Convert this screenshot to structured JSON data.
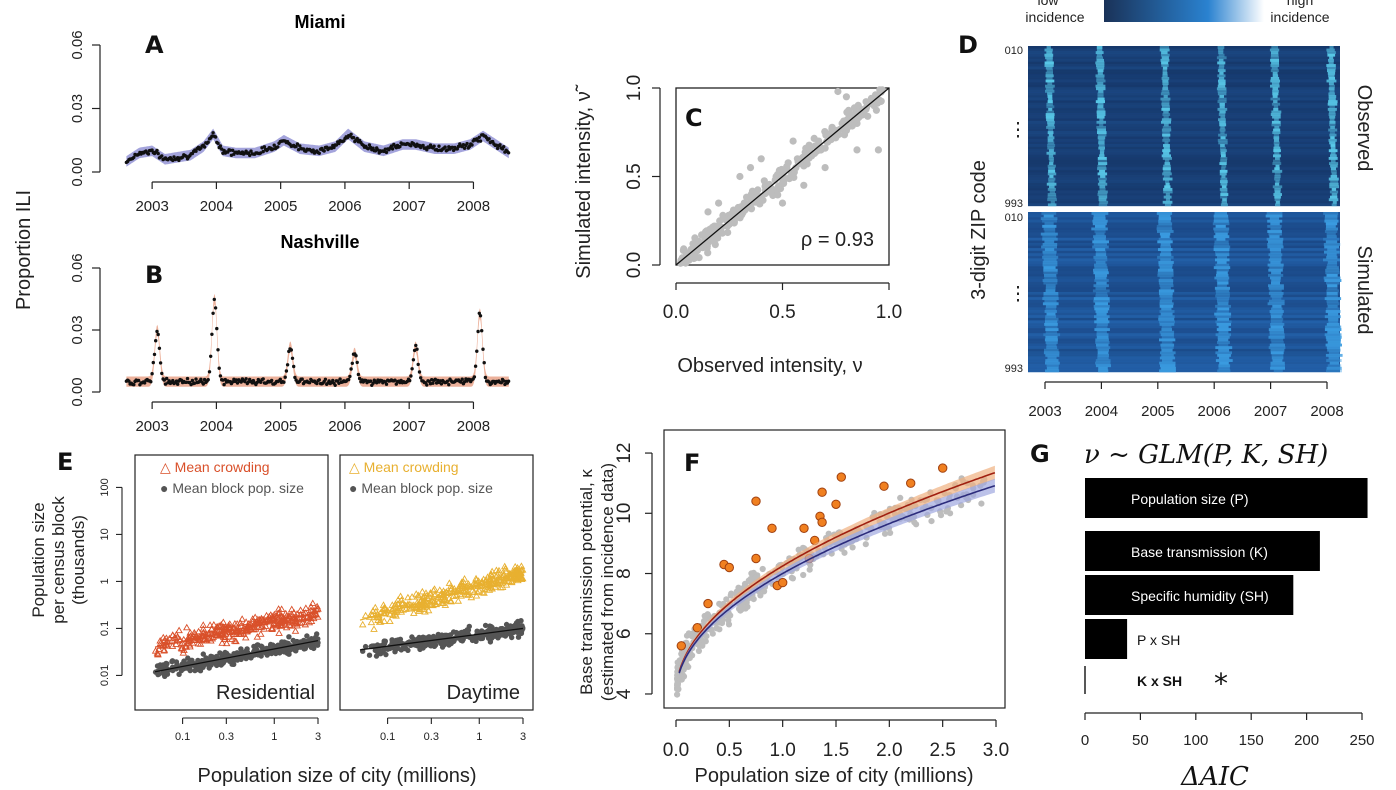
{
  "colors": {
    "miami": "#3a3a8c",
    "miami_band": "#9a9ad8",
    "nashville": "#d4502a",
    "nashville_band": "#eaa890",
    "residential": "#d9502a",
    "daytime": "#e8b030",
    "block_grey": "#555555",
    "scatter_grey": "#bdbdbd",
    "orange_point": "#f08020",
    "fit_red": "#a02010",
    "fit_blue": "#2c2c7c",
    "bar": "#000000"
  },
  "chart_data": [
    {
      "panel": "A",
      "type": "line",
      "title": "Miami",
      "ylabel": "Proportion ILI",
      "ylim": [
        0,
        0.06
      ],
      "yticks": [
        "0.00",
        "0.03",
        "0.06"
      ],
      "xticks": [
        "2003",
        "2004",
        "2005",
        "2006",
        "2007",
        "2008"
      ],
      "x_range": [
        2002.5,
        2008.6
      ],
      "series": [
        {
          "values": [
            [
              2002.6,
              0.005
            ],
            [
              2002.8,
              0.009
            ],
            [
              2003.0,
              0.01
            ],
            [
              2003.2,
              0.006
            ],
            [
              2003.4,
              0.007
            ],
            [
              2003.6,
              0.008
            ],
            [
              2003.8,
              0.012
            ],
            [
              2003.95,
              0.018
            ],
            [
              2004.1,
              0.01
            ],
            [
              2004.3,
              0.009
            ],
            [
              2004.6,
              0.009
            ],
            [
              2004.9,
              0.012
            ],
            [
              2005.05,
              0.015
            ],
            [
              2005.3,
              0.011
            ],
            [
              2005.6,
              0.01
            ],
            [
              2005.85,
              0.012
            ],
            [
              2006.05,
              0.018
            ],
            [
              2006.3,
              0.012
            ],
            [
              2006.6,
              0.01
            ],
            [
              2006.9,
              0.013
            ],
            [
              2007.1,
              0.013
            ],
            [
              2007.4,
              0.011
            ],
            [
              2007.7,
              0.011
            ],
            [
              2007.95,
              0.013
            ],
            [
              2008.15,
              0.017
            ],
            [
              2008.35,
              0.013
            ],
            [
              2008.55,
              0.009
            ]
          ]
        }
      ]
    },
    {
      "panel": "B",
      "type": "line",
      "title": "Nashville",
      "ylim": [
        0,
        0.06
      ],
      "yticks": [
        "0.00",
        "0.03",
        "0.06"
      ],
      "xticks": [
        "2003",
        "2004",
        "2005",
        "2006",
        "2007",
        "2008"
      ],
      "x_range": [
        2002.5,
        2008.6
      ],
      "peaks": [
        {
          "year": 2003.08,
          "value": 0.03
        },
        {
          "year": 2003.97,
          "value": 0.045
        },
        {
          "year": 2005.15,
          "value": 0.022
        },
        {
          "year": 2006.15,
          "value": 0.019
        },
        {
          "year": 2007.1,
          "value": 0.022
        },
        {
          "year": 2008.1,
          "value": 0.038
        }
      ],
      "baseline": 0.005
    },
    {
      "panel": "C",
      "type": "scatter",
      "xlabel": "Observed intensity, ν",
      "ylabel": "Simulated intensity, ν̃",
      "xlim": [
        0,
        1
      ],
      "ylim": [
        0,
        1
      ],
      "xticks": [
        "0.0",
        "0.5",
        "1.0"
      ],
      "yticks": [
        "0.0",
        "0.5",
        "1.0"
      ],
      "annotation": "ρ = 0.93",
      "points": [
        [
          0.05,
          0.06
        ],
        [
          0.08,
          0.12
        ],
        [
          0.1,
          0.09
        ],
        [
          0.12,
          0.17
        ],
        [
          0.15,
          0.14
        ],
        [
          0.18,
          0.22
        ],
        [
          0.2,
          0.19
        ],
        [
          0.22,
          0.28
        ],
        [
          0.25,
          0.23
        ],
        [
          0.27,
          0.31
        ],
        [
          0.3,
          0.27
        ],
        [
          0.32,
          0.35
        ],
        [
          0.35,
          0.33
        ],
        [
          0.37,
          0.41
        ],
        [
          0.4,
          0.37
        ],
        [
          0.42,
          0.45
        ],
        [
          0.45,
          0.43
        ],
        [
          0.47,
          0.5
        ],
        [
          0.5,
          0.46
        ],
        [
          0.52,
          0.55
        ],
        [
          0.55,
          0.52
        ],
        [
          0.57,
          0.6
        ],
        [
          0.6,
          0.56
        ],
        [
          0.62,
          0.65
        ],
        [
          0.65,
          0.63
        ],
        [
          0.67,
          0.7
        ],
        [
          0.7,
          0.66
        ],
        [
          0.72,
          0.74
        ],
        [
          0.75,
          0.72
        ],
        [
          0.78,
          0.8
        ],
        [
          0.8,
          0.76
        ],
        [
          0.82,
          0.85
        ],
        [
          0.85,
          0.8
        ],
        [
          0.88,
          0.86
        ],
        [
          0.9,
          0.84
        ],
        [
          0.93,
          0.9
        ],
        [
          0.76,
          0.98
        ],
        [
          0.8,
          0.95
        ],
        [
          0.3,
          0.5
        ],
        [
          0.35,
          0.55
        ],
        [
          0.2,
          0.35
        ],
        [
          0.5,
          0.35
        ],
        [
          0.6,
          0.45
        ],
        [
          0.7,
          0.55
        ],
        [
          0.85,
          0.65
        ],
        [
          0.95,
          0.65
        ],
        [
          0.15,
          0.3
        ],
        [
          0.4,
          0.6
        ],
        [
          0.55,
          0.7
        ]
      ]
    },
    {
      "panel": "D",
      "type": "heatmap",
      "legend_low": "low\nincidence",
      "legend_high": "high\nincidence",
      "ylabel": "3-digit ZIP code",
      "top_label": "Observed",
      "bottom_label": "Simulated",
      "zip_top": "010",
      "zip_bottom": "993",
      "xticks": [
        "2003",
        "2004",
        "2005",
        "2006",
        "2007",
        "2008"
      ],
      "peak_years": [
        2003.1,
        2004.0,
        2005.15,
        2006.15,
        2007.1,
        2008.1
      ]
    },
    {
      "panel": "E",
      "type": "scatter",
      "ylabel": "Population size\nper census block\n(thousands)",
      "xlabel": "Population size of city (millions)",
      "xticks": [
        "0.1",
        "0.3",
        "1",
        "3"
      ],
      "yticks": [
        "0.01",
        "0.1",
        "1",
        "10",
        "100"
      ],
      "subpanels": [
        {
          "label": "Residential",
          "crowding_fit": [
            [
              0.05,
              0.04
            ],
            [
              3,
              0.22
            ]
          ],
          "block_fit": [
            [
              0.05,
              0.012
            ],
            [
              3,
              0.055
            ]
          ]
        },
        {
          "label": "Daytime",
          "crowding_fit": [
            [
              0.05,
              0.15
            ],
            [
              3,
              1.5
            ]
          ],
          "block_fit": [
            [
              0.05,
              0.035
            ],
            [
              3,
              0.1
            ]
          ]
        }
      ],
      "legend": [
        "Mean crowding",
        "Mean block pop. size"
      ]
    },
    {
      "panel": "F",
      "type": "scatter",
      "xlabel": "Population size of city (millions)",
      "ylabel": "Base transmission potential, κ\n(estimated from incidence data)",
      "xlim": [
        0,
        3.0
      ],
      "ylim": [
        3.8,
        12.5
      ],
      "xticks": [
        "0.0",
        "0.5",
        "1.0",
        "1.5",
        "2.0",
        "2.5",
        "3.0"
      ],
      "yticks": [
        "4",
        "6",
        "8",
        "10",
        "12"
      ],
      "orange_points": [
        [
          0.05,
          5.6
        ],
        [
          0.2,
          6.2
        ],
        [
          0.3,
          7.0
        ],
        [
          0.45,
          8.3
        ],
        [
          0.5,
          8.2
        ],
        [
          0.75,
          10.4
        ],
        [
          0.75,
          8.5
        ],
        [
          0.9,
          9.5
        ],
        [
          0.95,
          7.6
        ],
        [
          1.0,
          7.7
        ],
        [
          1.2,
          9.5
        ],
        [
          1.25,
          8.5
        ],
        [
          1.35,
          9.9
        ],
        [
          1.37,
          9.7
        ],
        [
          1.37,
          10.7
        ],
        [
          1.5,
          10.3
        ],
        [
          1.55,
          11.2
        ],
        [
          1.95,
          10.9
        ],
        [
          2.2,
          11.0
        ],
        [
          2.5,
          11.5
        ],
        [
          1.3,
          9.1
        ]
      ]
    },
    {
      "panel": "G",
      "type": "bar",
      "title": "ν ~ GLM(P, K, SH)",
      "xlabel": "ΔAIC",
      "xlim": [
        0,
        250
      ],
      "xticks": [
        "0",
        "50",
        "100",
        "150",
        "200",
        "250"
      ],
      "categories": [
        "Population size (P)",
        "Base transmission (K)",
        "Specific humidity (SH)",
        "P x SH",
        "K x SH"
      ],
      "values": [
        255,
        212,
        188,
        38,
        0
      ],
      "annotation": "*"
    }
  ]
}
